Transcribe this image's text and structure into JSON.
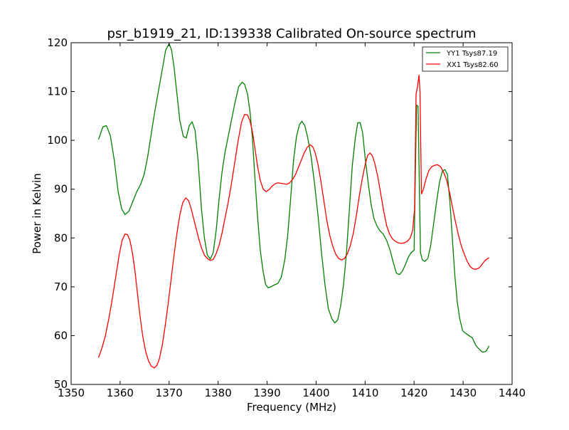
{
  "chart_data": {
    "type": "line",
    "title": "psr_b1919_21, ID:139338 Calibrated On-source spectrum",
    "xlabel": "Frequency (MHz)",
    "ylabel": "Power in Kelvin",
    "xlim": [
      1350,
      1440
    ],
    "ylim": [
      50,
      120
    ],
    "xticks": [
      1350,
      1360,
      1370,
      1380,
      1390,
      1400,
      1410,
      1420,
      1430,
      1440
    ],
    "yticks": [
      50,
      60,
      70,
      80,
      90,
      100,
      110,
      120
    ],
    "grid": false,
    "legend_position": "top-right",
    "series": [
      {
        "name": "YY1 Tsys87.19",
        "color": "#008000",
        "x": [
          1355.6,
          1356.5,
          1357.2,
          1358.0,
          1358.8,
          1359.6,
          1360.3,
          1361.0,
          1361.8,
          1362.6,
          1363.4,
          1364.2,
          1364.9,
          1365.6,
          1366.3,
          1367.0,
          1367.8,
          1368.6,
          1369.3,
          1370.0,
          1370.5,
          1371.0,
          1371.6,
          1372.2,
          1372.9,
          1373.5,
          1374.1,
          1374.7,
          1375.3,
          1375.9,
          1376.6,
          1377.2,
          1377.8,
          1378.4,
          1379.0,
          1379.6,
          1380.2,
          1380.8,
          1381.4,
          1382.1,
          1382.8,
          1383.5,
          1384.2,
          1384.9,
          1385.4,
          1386.0,
          1386.5,
          1387.0,
          1387.5,
          1388.0,
          1388.6,
          1389.2,
          1389.7,
          1390.2,
          1390.8,
          1391.5,
          1392.2,
          1392.9,
          1393.6,
          1394.2,
          1394.8,
          1395.4,
          1396.0,
          1396.6,
          1397.1,
          1397.7,
          1398.3,
          1399.0,
          1399.7,
          1400.4,
          1401.1,
          1401.8,
          1402.5,
          1403.2,
          1403.8,
          1404.4,
          1405.0,
          1405.6,
          1406.2,
          1406.8,
          1407.4,
          1408.0,
          1408.5,
          1409.0,
          1409.5,
          1410.0,
          1410.6,
          1411.2,
          1411.8,
          1412.4,
          1413.0,
          1413.7,
          1414.4,
          1415.1,
          1415.8,
          1416.4,
          1417.0,
          1417.6,
          1418.2,
          1418.8,
          1419.4,
          1420.0,
          1420.2,
          1420.5,
          1420.8,
          1421.0,
          1421.3,
          1421.7,
          1422.2,
          1422.8,
          1423.4,
          1424.0,
          1424.6,
          1425.2,
          1425.8,
          1426.3,
          1426.8,
          1427.3,
          1427.8,
          1428.3,
          1428.8,
          1429.3,
          1429.9,
          1430.5,
          1431.2,
          1431.9,
          1432.6,
          1433.3,
          1434.0,
          1434.7,
          1435.3
        ],
        "values": [
          100.2,
          102.8,
          103.0,
          101.0,
          96.0,
          89.5,
          86.0,
          84.8,
          85.5,
          87.5,
          89.5,
          91.0,
          93.0,
          96.5,
          101.0,
          105.5,
          110.0,
          114.5,
          118.5,
          119.8,
          118.5,
          115.0,
          109.5,
          104.0,
          100.8,
          100.5,
          103.0,
          103.8,
          102.0,
          96.0,
          86.0,
          80.0,
          76.5,
          75.7,
          77.0,
          81.5,
          88.0,
          93.5,
          97.5,
          101.0,
          104.5,
          108.0,
          111.0,
          111.9,
          111.5,
          109.5,
          106.0,
          100.5,
          92.5,
          85.0,
          77.5,
          73.0,
          70.5,
          69.8,
          70.0,
          70.4,
          70.7,
          72.0,
          75.5,
          80.5,
          88.0,
          96.0,
          100.8,
          103.2,
          103.9,
          103.0,
          100.5,
          96.5,
          91.0,
          84.5,
          77.0,
          70.5,
          65.5,
          63.5,
          62.6,
          63.2,
          66.0,
          70.5,
          77.0,
          86.0,
          95.0,
          100.5,
          103.6,
          103.6,
          101.5,
          96.5,
          91.5,
          87.0,
          84.0,
          82.5,
          81.5,
          80.8,
          79.5,
          77.5,
          74.8,
          72.8,
          72.5,
          73.2,
          74.5,
          76.0,
          77.0,
          77.5,
          90.0,
          107.2,
          107.0,
          95.0,
          77.0,
          75.5,
          75.2,
          75.8,
          78.5,
          83.0,
          87.5,
          91.5,
          93.8,
          94.0,
          93.0,
          87.5,
          80.0,
          72.5,
          67.0,
          63.5,
          61.0,
          60.5,
          60.0,
          59.5,
          58.0,
          57.2,
          56.6,
          56.8,
          57.9
        ]
      },
      {
        "name": "XX1 Tsys82.60",
        "color": "#ff0000",
        "x": [
          1355.6,
          1356.3,
          1357.0,
          1357.7,
          1358.4,
          1359.1,
          1359.8,
          1360.4,
          1361.0,
          1361.5,
          1362.0,
          1362.5,
          1363.0,
          1363.5,
          1364.0,
          1364.6,
          1365.2,
          1365.8,
          1366.4,
          1367.0,
          1367.5,
          1368.0,
          1368.6,
          1369.2,
          1369.8,
          1370.4,
          1371.0,
          1371.6,
          1372.2,
          1372.8,
          1373.4,
          1374.0,
          1374.5,
          1375.0,
          1375.5,
          1376.0,
          1376.6,
          1377.2,
          1377.8,
          1378.4,
          1379.0,
          1379.6,
          1380.2,
          1380.8,
          1381.4,
          1382.0,
          1382.7,
          1383.4,
          1384.1,
          1384.8,
          1385.4,
          1386.0,
          1386.5,
          1387.0,
          1387.5,
          1388.0,
          1388.6,
          1389.2,
          1389.8,
          1390.4,
          1391.0,
          1391.6,
          1392.2,
          1392.8,
          1393.4,
          1394.0,
          1394.6,
          1395.2,
          1395.8,
          1396.4,
          1397.0,
          1397.6,
          1398.2,
          1398.8,
          1399.3,
          1399.8,
          1400.4,
          1401.0,
          1401.6,
          1402.2,
          1402.8,
          1403.4,
          1404.0,
          1404.6,
          1405.2,
          1405.8,
          1406.4,
          1407.0,
          1407.6,
          1408.2,
          1408.8,
          1409.4,
          1410.0,
          1410.5,
          1411.0,
          1411.5,
          1412.0,
          1412.6,
          1413.2,
          1413.8,
          1414.4,
          1415.0,
          1415.6,
          1416.2,
          1416.8,
          1417.4,
          1418.0,
          1418.6,
          1419.2,
          1419.7,
          1420.1,
          1420.4,
          1420.7,
          1421.0,
          1421.2,
          1421.5,
          1421.9,
          1422.4,
          1423.0,
          1423.6,
          1424.2,
          1424.8,
          1425.4,
          1426.0,
          1426.6,
          1427.2,
          1427.8,
          1428.4,
          1429.0,
          1429.6,
          1430.2,
          1430.8,
          1431.4,
          1432.0,
          1432.6,
          1433.2,
          1433.8,
          1434.4,
          1435.0,
          1435.3
        ],
        "values": [
          55.5,
          57.5,
          60.0,
          63.5,
          67.5,
          72.0,
          76.5,
          79.5,
          80.8,
          80.7,
          79.5,
          77.0,
          73.5,
          69.0,
          64.5,
          60.0,
          56.8,
          54.8,
          53.7,
          53.4,
          53.9,
          55.2,
          58.0,
          62.0,
          66.5,
          71.5,
          76.5,
          81.0,
          84.8,
          87.3,
          88.2,
          87.6,
          86.0,
          84.0,
          82.0,
          80.0,
          78.0,
          76.5,
          75.8,
          75.4,
          75.6,
          76.8,
          78.5,
          81.0,
          84.0,
          87.0,
          91.0,
          95.5,
          100.0,
          103.8,
          105.3,
          105.2,
          104.0,
          101.8,
          98.5,
          95.0,
          91.8,
          90.0,
          89.5,
          89.9,
          90.6,
          91.1,
          91.3,
          91.2,
          91.1,
          91.0,
          91.3,
          92.0,
          93.0,
          94.5,
          96.0,
          97.5,
          98.6,
          99.1,
          98.7,
          97.5,
          95.0,
          91.5,
          87.5,
          83.5,
          80.5,
          78.3,
          76.7,
          75.8,
          75.5,
          75.8,
          76.8,
          78.5,
          81.0,
          84.5,
          88.5,
          92.0,
          95.0,
          96.9,
          97.4,
          96.8,
          95.2,
          92.5,
          89.0,
          85.5,
          82.5,
          80.8,
          79.8,
          79.3,
          79.0,
          78.9,
          79.0,
          79.3,
          80.0,
          81.5,
          86.0,
          109.5,
          111.0,
          113.4,
          110.0,
          89.0,
          90.0,
          92.0,
          93.8,
          94.6,
          94.9,
          95.0,
          94.6,
          93.5,
          92.0,
          89.5,
          86.5,
          83.5,
          80.8,
          78.5,
          76.8,
          75.3,
          74.2,
          73.7,
          73.6,
          73.8,
          74.5,
          75.3,
          75.8,
          75.9
        ]
      }
    ]
  }
}
